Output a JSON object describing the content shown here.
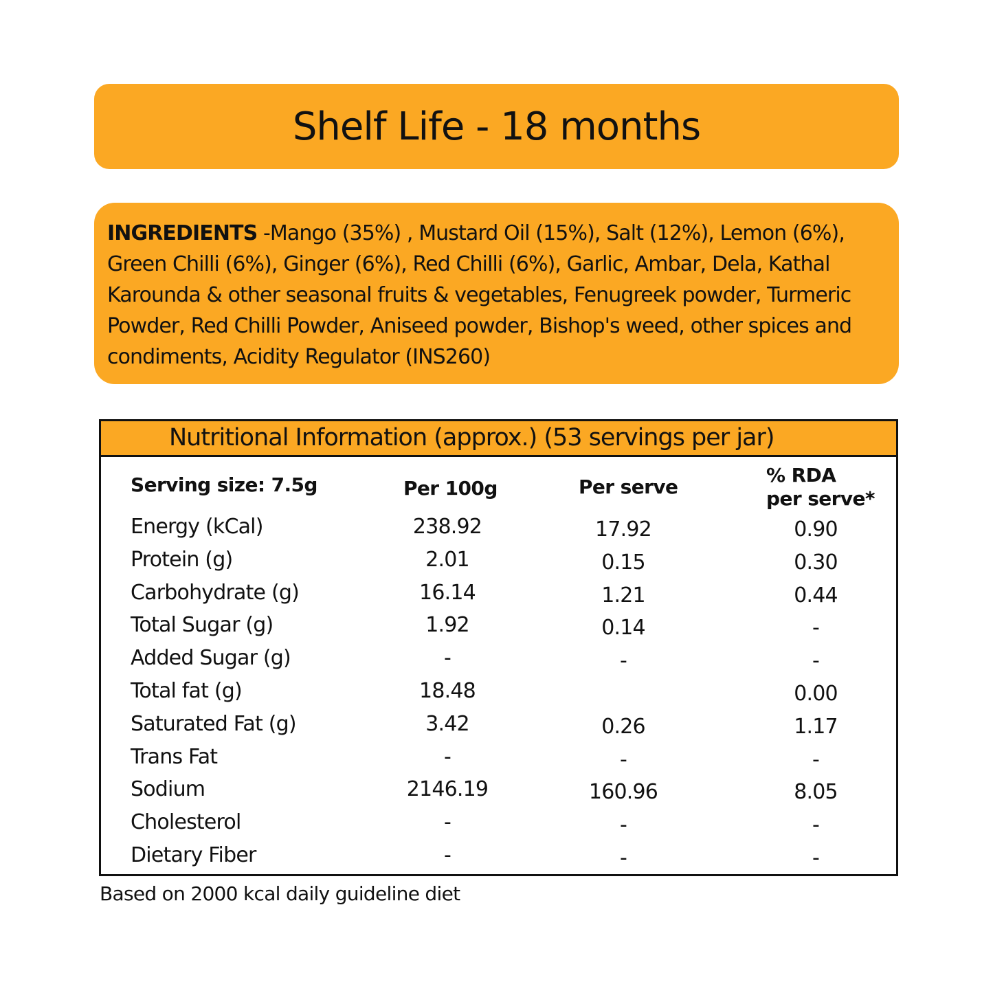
{
  "shelf_life": {
    "title": "Shelf Life - 18 months"
  },
  "ingredients": {
    "label": "INGREDIENTS",
    "text": " -Mango (35%) , Mustard Oil (15%), Salt (12%), Lemon (6%), Green Chilli (6%), Ginger (6%), Red Chilli (6%), Garlic, Ambar, Dela, Kathal Karounda & other seasonal fruits & vegetables, Fenugreek powder, Turmeric Powder, Red Chilli Powder, Aniseed powder, Bishop's weed, other spices and condiments, Acidity Regulator (INS260)"
  },
  "nutrition": {
    "title": "Nutritional Information (approx.) (53 servings per jar)",
    "headers": {
      "serving_size": "Serving size: 7.5g",
      "per_100g": "Per 100g",
      "per_serve": "Per serve",
      "rda_line1": "% RDA",
      "rda_line2": "per serve*"
    },
    "rows": [
      {
        "name": "Energy (kCal)",
        "per_100g": "238.92",
        "per_serve": "17.92",
        "rda": "0.90"
      },
      {
        "name": "Protein (g)",
        "per_100g": "2.01",
        "per_serve": "0.15",
        "rda": "0.30"
      },
      {
        "name": "Carbohydrate (g)",
        "per_100g": "16.14",
        "per_serve": "1.21",
        "rda": "0.44"
      },
      {
        "name": "Total Sugar (g)",
        "per_100g": "1.92",
        "per_serve": "0.14",
        "rda": "-"
      },
      {
        "name": "Added Sugar (g)",
        "per_100g": "-",
        "per_serve": "-",
        "rda": "-"
      },
      {
        "name": "Total fat (g)",
        "per_100g": "18.48",
        "per_serve": "",
        "rda": "0.00"
      },
      {
        "name": "Saturated Fat (g)",
        "per_100g": "3.42",
        "per_serve": "0.26",
        "rda": "1.17"
      },
      {
        "name": "Trans Fat",
        "per_100g": "-",
        "per_serve": "-",
        "rda": "-"
      },
      {
        "name": "Sodium",
        "per_100g": "2146.19",
        "per_serve": "160.96",
        "rda": "8.05"
      },
      {
        "name": "Cholesterol",
        "per_100g": "-",
        "per_serve": "-",
        "rda": "-"
      },
      {
        "name": "Dietary Fiber",
        "per_100g": "-",
        "per_serve": "-",
        "rda": "-"
      }
    ]
  },
  "footnote": "Based on 2000 kcal daily guideline diet",
  "colors": {
    "accent": "#FBA823",
    "text": "#111111",
    "border": "#111111"
  }
}
